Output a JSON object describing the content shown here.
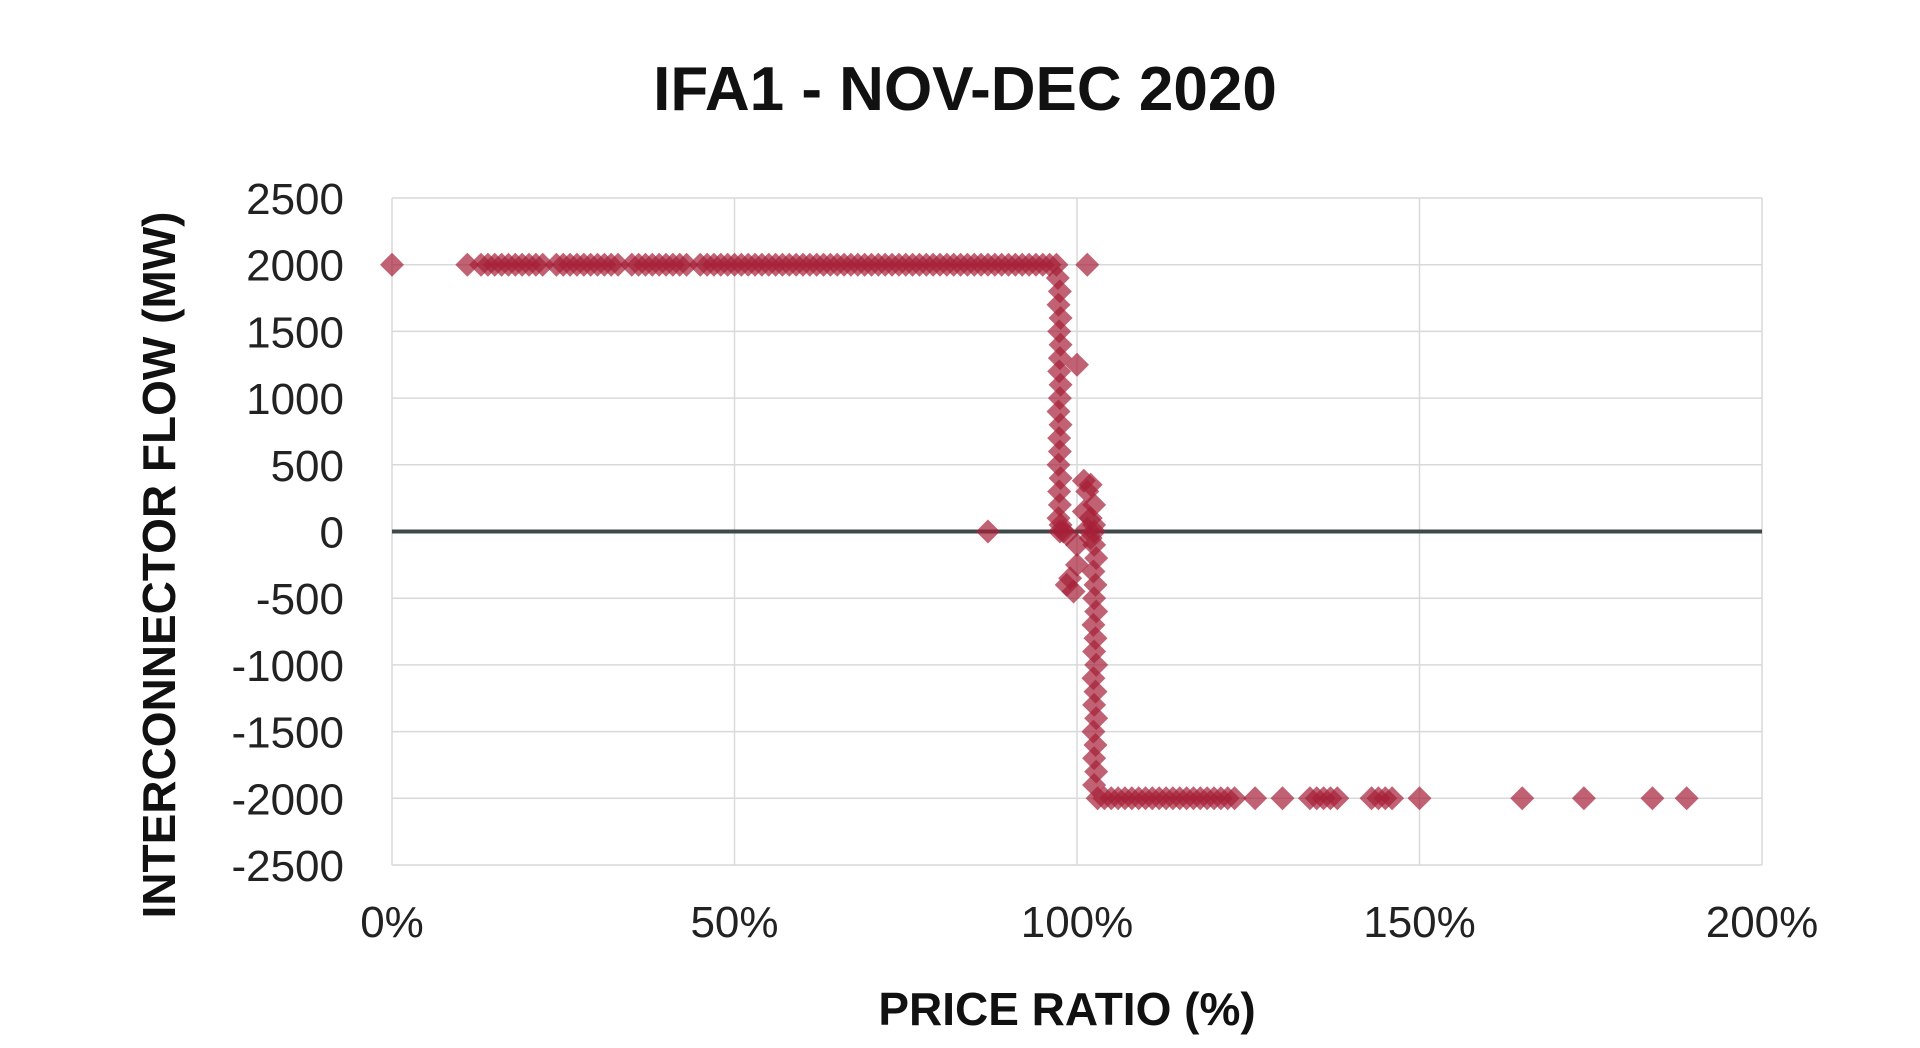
{
  "chart_data": {
    "type": "scatter",
    "title": "IFA1 - NOV-DEC 2020",
    "xlabel": "PRICE RATIO (%)",
    "ylabel": "INTERCONNECTOR FLOW (MW)",
    "xlim": [
      0,
      200
    ],
    "ylim": [
      -2500,
      2500
    ],
    "x_ticks": [
      0,
      50,
      100,
      150,
      200
    ],
    "x_tick_labels": [
      "0%",
      "50%",
      "100%",
      "150%",
      "200%"
    ],
    "y_ticks": [
      2500,
      2000,
      1500,
      1000,
      500,
      0,
      -500,
      -1000,
      -1500,
      -2000,
      -2500
    ],
    "y_tick_labels": [
      "2500",
      "2000",
      "1500",
      "1000",
      "500",
      "0",
      "-500",
      "-1000",
      "-1500",
      "-2000",
      "-2500"
    ],
    "grid": true,
    "legend": "none",
    "marker": "diamond",
    "marker_color": "#a52038",
    "zero_line_color": "#3e4a4a",
    "series": [
      {
        "points": [
          [
            0,
            2000
          ],
          [
            11,
            2000
          ],
          [
            13,
            2000
          ],
          [
            14,
            2000
          ],
          [
            15,
            2000
          ],
          [
            16,
            2000
          ],
          [
            17,
            2000
          ],
          [
            18,
            2000
          ],
          [
            19,
            2000
          ],
          [
            20,
            2000
          ],
          [
            21,
            2000
          ],
          [
            22,
            2000
          ],
          [
            24,
            2000
          ],
          [
            25,
            2000
          ],
          [
            26,
            2000
          ],
          [
            27,
            2000
          ],
          [
            28,
            2000
          ],
          [
            29,
            2000
          ],
          [
            30,
            2000
          ],
          [
            31,
            2000
          ],
          [
            32,
            2000
          ],
          [
            33,
            2000
          ],
          [
            35,
            2000
          ],
          [
            36,
            2000
          ],
          [
            37,
            2000
          ],
          [
            38,
            2000
          ],
          [
            39,
            2000
          ],
          [
            40,
            2000
          ],
          [
            41,
            2000
          ],
          [
            42,
            2000
          ],
          [
            43,
            2000
          ],
          [
            45,
            2000
          ],
          [
            46,
            2000
          ],
          [
            47,
            2000
          ],
          [
            48,
            2000
          ],
          [
            49,
            2000
          ],
          [
            50,
            2000
          ],
          [
            51,
            2000
          ],
          [
            52,
            2000
          ],
          [
            53,
            2000
          ],
          [
            54,
            2000
          ],
          [
            55,
            2000
          ],
          [
            56,
            2000
          ],
          [
            57,
            2000
          ],
          [
            58,
            2000
          ],
          [
            59,
            2000
          ],
          [
            60,
            2000
          ],
          [
            61,
            2000
          ],
          [
            62,
            2000
          ],
          [
            63,
            2000
          ],
          [
            64,
            2000
          ],
          [
            65,
            2000
          ],
          [
            66,
            2000
          ],
          [
            67,
            2000
          ],
          [
            68,
            2000
          ],
          [
            69,
            2000
          ],
          [
            70,
            2000
          ],
          [
            71,
            2000
          ],
          [
            72,
            2000
          ],
          [
            73,
            2000
          ],
          [
            74,
            2000
          ],
          [
            75,
            2000
          ],
          [
            76,
            2000
          ],
          [
            77,
            2000
          ],
          [
            78,
            2000
          ],
          [
            79,
            2000
          ],
          [
            80,
            2000
          ],
          [
            81,
            2000
          ],
          [
            82,
            2000
          ],
          [
            83,
            2000
          ],
          [
            84,
            2000
          ],
          [
            85,
            2000
          ],
          [
            86,
            2000
          ],
          [
            87,
            2000
          ],
          [
            88,
            2000
          ],
          [
            89,
            2000
          ],
          [
            90,
            2000
          ],
          [
            91,
            2000
          ],
          [
            92,
            2000
          ],
          [
            93,
            2000
          ],
          [
            94,
            2000
          ],
          [
            95,
            2000
          ],
          [
            96,
            2000
          ],
          [
            97,
            2000
          ],
          [
            101.5,
            2000
          ],
          [
            97.2,
            1900
          ],
          [
            97.5,
            1800
          ],
          [
            97.3,
            1700
          ],
          [
            97.6,
            1600
          ],
          [
            97.4,
            1500
          ],
          [
            97.6,
            1400
          ],
          [
            97.5,
            1300
          ],
          [
            100,
            1250
          ],
          [
            97.4,
            1200
          ],
          [
            97.6,
            1100
          ],
          [
            97.5,
            1000
          ],
          [
            97.3,
            900
          ],
          [
            97.6,
            800
          ],
          [
            97.4,
            700
          ],
          [
            97.5,
            600
          ],
          [
            97.3,
            500
          ],
          [
            97.6,
            400
          ],
          [
            97.4,
            300
          ],
          [
            97.5,
            200
          ],
          [
            97.3,
            100
          ],
          [
            97.6,
            50
          ],
          [
            97.5,
            0
          ],
          [
            98,
            0
          ],
          [
            98.5,
            -20
          ],
          [
            87,
            0
          ],
          [
            101,
            380
          ],
          [
            102,
            350
          ],
          [
            101.5,
            300
          ],
          [
            102.5,
            200
          ],
          [
            101,
            150
          ],
          [
            102,
            100
          ],
          [
            102.5,
            50
          ],
          [
            101.5,
            20
          ],
          [
            102.5,
            0
          ],
          [
            102,
            -50
          ],
          [
            100,
            -100
          ],
          [
            100,
            -250
          ],
          [
            99,
            -350
          ],
          [
            98.5,
            -400
          ],
          [
            99.5,
            -450
          ],
          [
            102.5,
            -100
          ],
          [
            102.8,
            -200
          ],
          [
            102.4,
            -300
          ],
          [
            102.7,
            -400
          ],
          [
            102.5,
            -500
          ],
          [
            102.8,
            -600
          ],
          [
            102.4,
            -700
          ],
          [
            102.7,
            -800
          ],
          [
            102.5,
            -900
          ],
          [
            102.8,
            -1000
          ],
          [
            102.4,
            -1100
          ],
          [
            102.7,
            -1200
          ],
          [
            102.5,
            -1300
          ],
          [
            102.8,
            -1400
          ],
          [
            102.4,
            -1500
          ],
          [
            102.7,
            -1600
          ],
          [
            102.5,
            -1700
          ],
          [
            102.8,
            -1800
          ],
          [
            102.5,
            -1900
          ],
          [
            103,
            -2000
          ],
          [
            104,
            -2000
          ],
          [
            105,
            -2000
          ],
          [
            106,
            -2000
          ],
          [
            107,
            -2000
          ],
          [
            108,
            -2000
          ],
          [
            109,
            -2000
          ],
          [
            110,
            -2000
          ],
          [
            111,
            -2000
          ],
          [
            112,
            -2000
          ],
          [
            113,
            -2000
          ],
          [
            114,
            -2000
          ],
          [
            115,
            -2000
          ],
          [
            116,
            -2000
          ],
          [
            117,
            -2000
          ],
          [
            118,
            -2000
          ],
          [
            119,
            -2000
          ],
          [
            120,
            -2000
          ],
          [
            121,
            -2000
          ],
          [
            122,
            -2000
          ],
          [
            123,
            -2000
          ],
          [
            126,
            -2000
          ],
          [
            130,
            -2000
          ],
          [
            134,
            -2000
          ],
          [
            135,
            -2000
          ],
          [
            136,
            -2000
          ],
          [
            137,
            -2000
          ],
          [
            138,
            -2000
          ],
          [
            143,
            -2000
          ],
          [
            144,
            -2000
          ],
          [
            145,
            -2000
          ],
          [
            146,
            -2000
          ],
          [
            150,
            -2000
          ],
          [
            165,
            -2000
          ],
          [
            174,
            -2000
          ],
          [
            184,
            -2000
          ],
          [
            189,
            -2000
          ]
        ]
      }
    ]
  }
}
